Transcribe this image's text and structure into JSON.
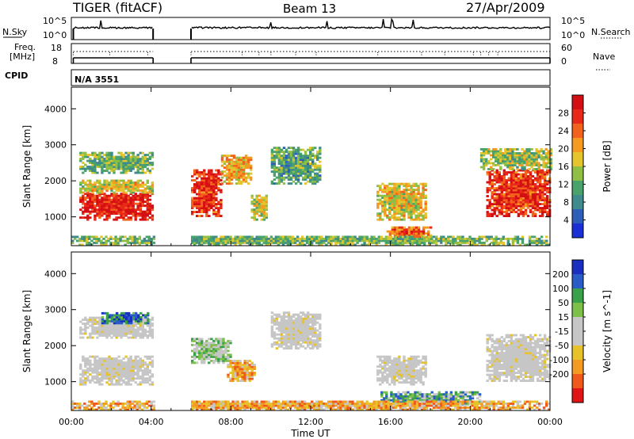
{
  "header": {
    "station": "TIGER (fitACF)",
    "beam": "Beam 13",
    "date": "27/Apr/2009"
  },
  "top_panels": {
    "nsky_label": "N.Sky",
    "nsky_ticks": [
      "10^5",
      "10^0"
    ],
    "nsearch_label": "N.Search",
    "nsearch_ticks": [
      "10^5",
      "10^0"
    ],
    "freq_label_1": "Freq.",
    "freq_label_2": "[MHz]",
    "freq_ticks": [
      "18",
      "8"
    ],
    "nave_label": "Nave",
    "nave_ticks": [
      "60",
      "0"
    ],
    "cpid_label": "CPID",
    "cpid_value": "N/A 3551"
  },
  "chart_data": [
    {
      "type": "heatmap",
      "quantity": "Power",
      "ylabel": "Slant Range [km]",
      "xlabel": "Time UT",
      "x_ticks": [
        "00:00",
        "04:00",
        "08:00",
        "12:00",
        "16:00",
        "20:00",
        "00:00"
      ],
      "y_ticks": [
        1000,
        2000,
        3000,
        4000
      ],
      "ylim": [
        200,
        4600
      ],
      "xlim_hours": [
        0,
        24
      ],
      "colorbar": {
        "label": "Power [dB]",
        "ticks": [
          4,
          8,
          12,
          16,
          20,
          24,
          28
        ],
        "range": [
          0,
          32
        ],
        "colors": [
          "#1b2fd6",
          "#2e5fb8",
          "#3f8a8a",
          "#49a26b",
          "#8fbf44",
          "#e5c52e",
          "#f59a20",
          "#f2621c",
          "#e8291a",
          "#d40f14"
        ]
      },
      "data_gaps_hours": [
        [
          4.1,
          6.0
        ]
      ],
      "regions": [
        {
          "t": [
            0.4,
            4.1
          ],
          "r": [
            900,
            1650
          ],
          "level": 0.9
        },
        {
          "t": [
            0.4,
            4.1
          ],
          "r": [
            1650,
            2000
          ],
          "level": 0.55
        },
        {
          "t": [
            0.4,
            4.1
          ],
          "r": [
            2200,
            2800
          ],
          "level": 0.4
        },
        {
          "t": [
            6.0,
            7.5
          ],
          "r": [
            1000,
            2300
          ],
          "level": 0.85
        },
        {
          "t": [
            7.5,
            9.0
          ],
          "r": [
            1900,
            2700
          ],
          "level": 0.6
        },
        {
          "t": [
            9.0,
            9.8
          ],
          "r": [
            900,
            1600
          ],
          "level": 0.5
        },
        {
          "t": [
            10.0,
            12.5
          ],
          "r": [
            1900,
            2900
          ],
          "level": 0.35
        },
        {
          "t": [
            15.3,
            17.8
          ],
          "r": [
            900,
            1900
          ],
          "level": 0.55
        },
        {
          "t": [
            15.8,
            18.0
          ],
          "r": [
            350,
            700
          ],
          "level": 0.75
        },
        {
          "t": [
            20.8,
            24.0
          ],
          "r": [
            1000,
            2300
          ],
          "level": 0.85
        },
        {
          "t": [
            20.5,
            24.0
          ],
          "r": [
            2300,
            2900
          ],
          "level": 0.45
        },
        {
          "t": [
            0.0,
            24.0
          ],
          "r": [
            200,
            450
          ],
          "level": 0.4
        }
      ]
    },
    {
      "type": "heatmap",
      "quantity": "Velocity",
      "ylabel": "Slant Range [km]",
      "xlabel": "Time UT",
      "x_ticks": [
        "00:00",
        "04:00",
        "08:00",
        "12:00",
        "16:00",
        "20:00",
        "00:00"
      ],
      "y_ticks": [
        1000,
        2000,
        3000,
        4000
      ],
      "ylim": [
        200,
        4600
      ],
      "xlim_hours": [
        0,
        24
      ],
      "colorbar": {
        "label": "Velocity [m s^-1]",
        "ticks": [
          200,
          100,
          50,
          15,
          -15,
          -50,
          -100,
          -200
        ],
        "range": [
          -250,
          250
        ],
        "colors": [
          "#1a2fbf",
          "#2a5cc7",
          "#3aa04a",
          "#7cc04a",
          "#c6c6c6",
          "#c6c6c6",
          "#e8c22a",
          "#f29a22",
          "#ef5a1c",
          "#e01414"
        ]
      },
      "data_gaps_hours": [
        [
          4.1,
          6.0
        ]
      ],
      "regions": [
        {
          "t": [
            0.4,
            4.1
          ],
          "r": [
            900,
            1700
          ],
          "level": 0.5
        },
        {
          "t": [
            0.4,
            4.1
          ],
          "r": [
            2200,
            2800
          ],
          "level": 0.5
        },
        {
          "t": [
            1.5,
            3.8
          ],
          "r": [
            2600,
            2900
          ],
          "level": 0.85
        },
        {
          "t": [
            6.0,
            8.0
          ],
          "r": [
            1500,
            2200
          ],
          "level": 0.6
        },
        {
          "t": [
            7.8,
            9.2
          ],
          "r": [
            1000,
            1600
          ],
          "level": 0.3
        },
        {
          "t": [
            10.0,
            12.5
          ],
          "r": [
            1900,
            2900
          ],
          "level": 0.5
        },
        {
          "t": [
            15.3,
            17.8
          ],
          "r": [
            900,
            1700
          ],
          "level": 0.5
        },
        {
          "t": [
            15.5,
            20.5
          ],
          "r": [
            350,
            700
          ],
          "level": 0.7
        },
        {
          "t": [
            20.8,
            24.0
          ],
          "r": [
            1000,
            2300
          ],
          "level": 0.5
        },
        {
          "t": [
            0.0,
            24.0
          ],
          "r": [
            200,
            450
          ],
          "level": 0.3
        }
      ]
    }
  ]
}
